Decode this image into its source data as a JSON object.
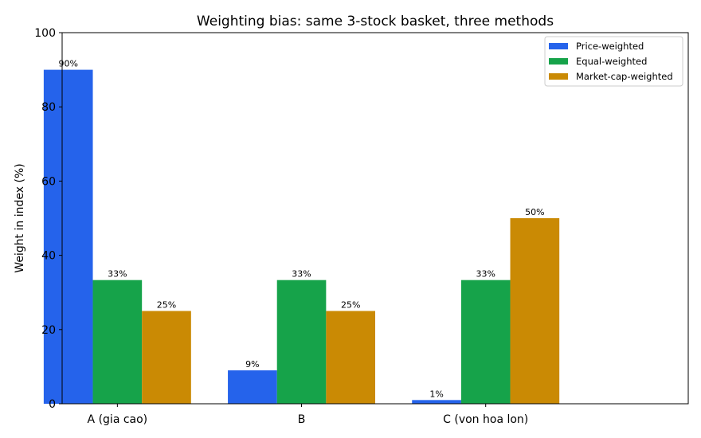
{
  "chart_data": {
    "type": "bar",
    "title": "Weighting bias: same 3-stock basket, three methods",
    "xlabel": "",
    "ylabel": "Weight in index (%)",
    "ylim": [
      0,
      100
    ],
    "yticks": [
      0,
      20,
      40,
      60,
      80,
      100
    ],
    "grid": false,
    "legend_position": "top-right",
    "categories": [
      "A (gia cao)",
      "B",
      "C (von hoa lon)"
    ],
    "series": [
      {
        "name": "Price-weighted",
        "color": "#2563eb",
        "values": [
          90,
          9,
          1
        ],
        "labels": [
          "90%",
          "9%",
          "1%"
        ]
      },
      {
        "name": "Equal-weighted",
        "color": "#16a34a",
        "values": [
          33.33,
          33.33,
          33.33
        ],
        "labels": [
          "33%",
          "33%",
          "33%"
        ]
      },
      {
        "name": "Market-cap-weighted",
        "color": "#ca8a04",
        "values": [
          25,
          25,
          50
        ],
        "labels": [
          "25%",
          "25%",
          "50%"
        ]
      }
    ]
  }
}
